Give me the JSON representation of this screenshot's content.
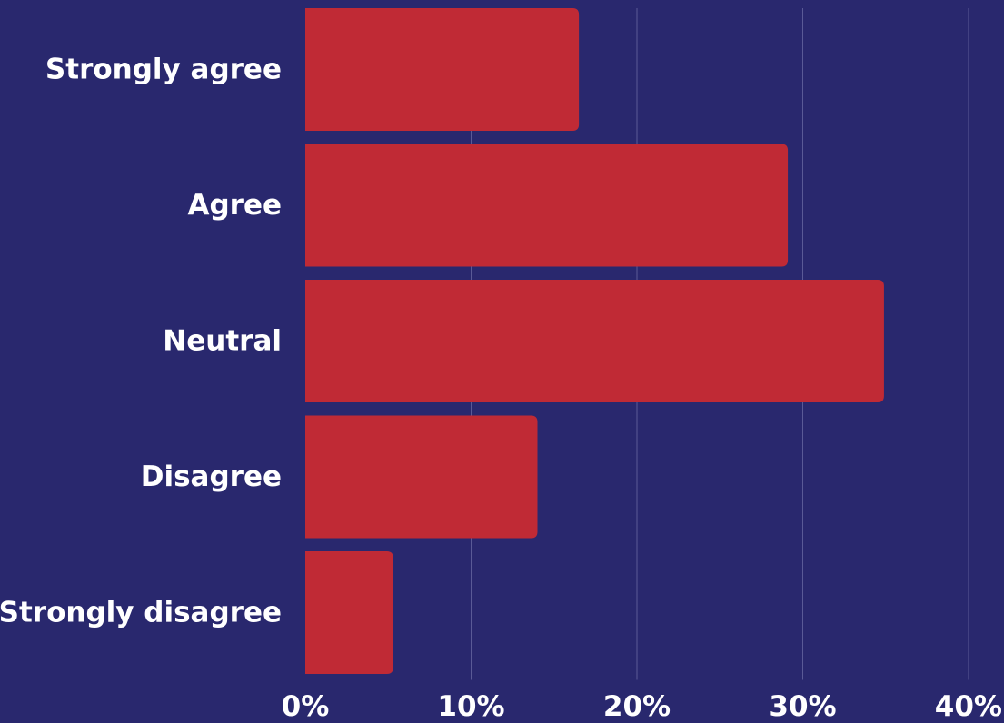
{
  "chart_data": {
    "type": "bar",
    "orientation": "horizontal",
    "categories": [
      "Strongly agree",
      "Agree",
      "Neutral",
      "Disagree",
      "Strongly disagree"
    ],
    "values": [
      16.5,
      29.1,
      34.9,
      14.0,
      5.3
    ],
    "x_ticks": [
      "0%",
      "10%",
      "20%",
      "30%",
      "40%"
    ],
    "xlim": [
      0,
      40
    ],
    "grid": true,
    "title": "",
    "xlabel": "",
    "ylabel": ""
  },
  "colors": {
    "background": "#29286e",
    "bar": "#c02a35",
    "text": "#ffffff",
    "grid": "#5a5a96"
  }
}
